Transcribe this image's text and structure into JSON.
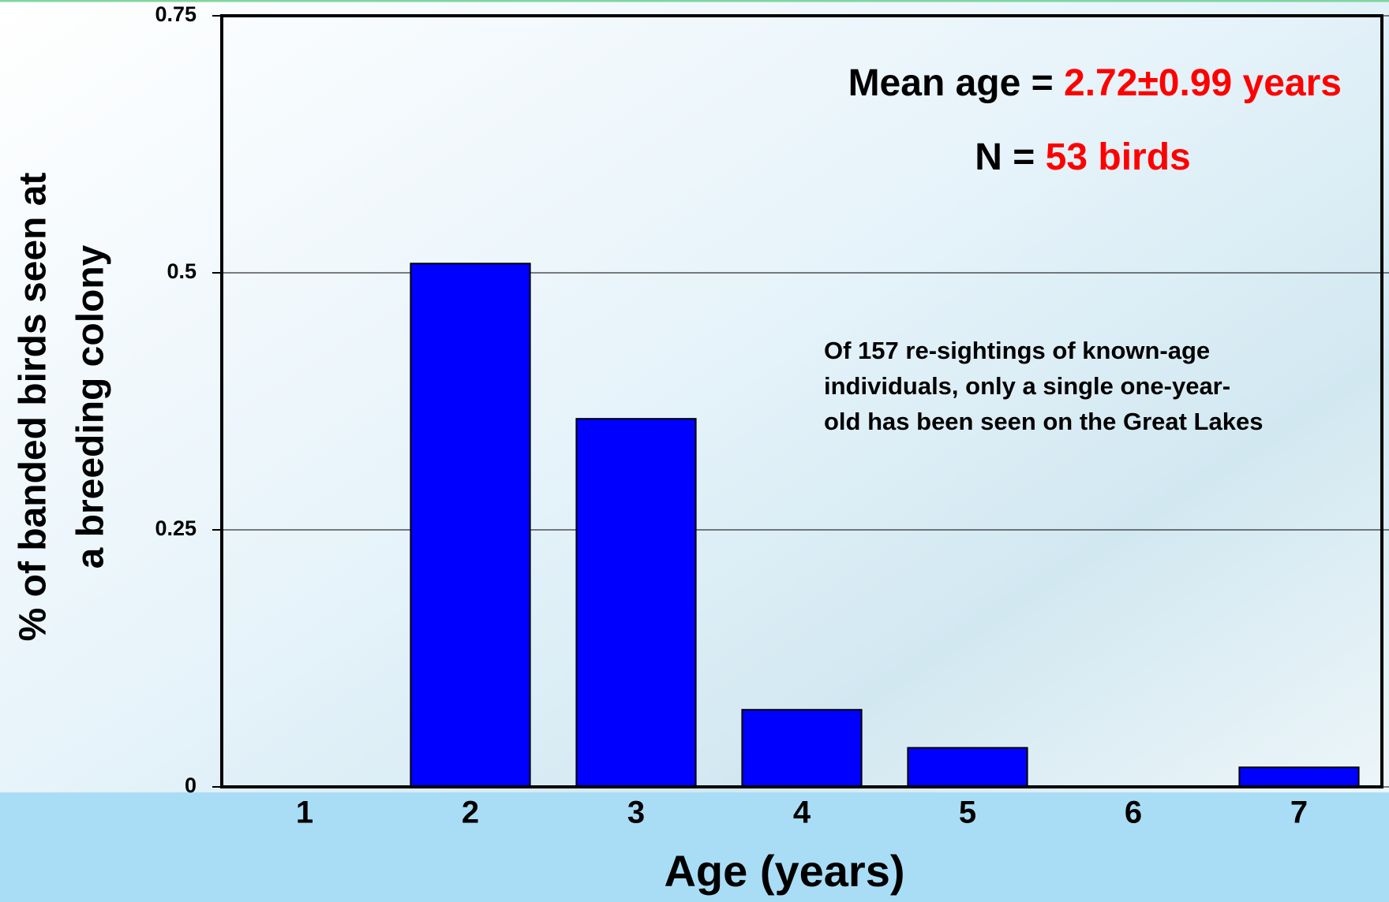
{
  "chart_data": {
    "type": "bar",
    "xlabel": "Age (years)",
    "ylabel": [
      "% of banded birds seen at",
      "a breeding colony"
    ],
    "categories": [
      "1",
      "2",
      "3",
      "4",
      "5",
      "6",
      "7"
    ],
    "values": [
      0,
      0.509,
      0.358,
      0.075,
      0.038,
      0,
      0.019
    ],
    "color": "#0000ff",
    "ylim": [
      0,
      0.75
    ],
    "yticks": [
      0,
      0.25,
      0.5,
      0.75
    ],
    "grid": true,
    "annotations": {
      "mean": {
        "label": "Mean age =",
        "value": "2.72±0.99 years"
      },
      "n": {
        "label": "N =",
        "value": "53 birds"
      },
      "note": [
        "Of 157 re-sightings of known-age",
        "individuals, only a single one-year-",
        "old has been seen on the Great Lakes"
      ]
    }
  }
}
